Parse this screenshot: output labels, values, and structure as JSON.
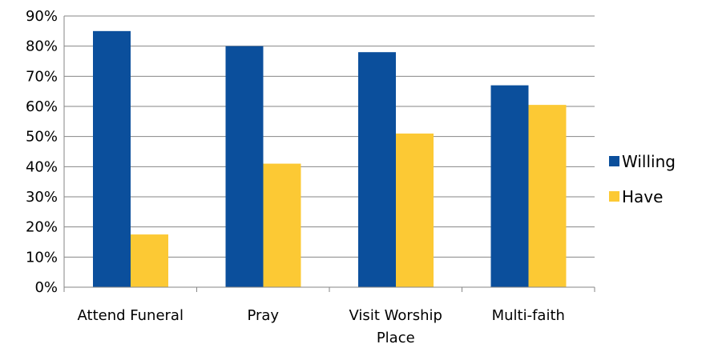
{
  "chart_data": {
    "type": "bar",
    "categories": [
      [
        "Attend Funeral"
      ],
      [
        "Pray"
      ],
      [
        "Visit Worship",
        "Place"
      ],
      [
        "Multi-faith"
      ]
    ],
    "series": [
      {
        "name": "Willing",
        "values": [
          0.85,
          0.8,
          0.78,
          0.67
        ],
        "color": "#0b4f9c"
      },
      {
        "name": "Have",
        "values": [
          0.175,
          0.41,
          0.51,
          0.605
        ],
        "color": "#fcc934"
      }
    ],
    "ylim": [
      0,
      0.9
    ],
    "yticks": [
      0,
      0.1,
      0.2,
      0.3,
      0.4,
      0.5,
      0.6,
      0.7,
      0.8,
      0.9
    ],
    "ytick_format": "percent",
    "grid": true,
    "legend_position": "right",
    "title": "",
    "xlabel": "",
    "ylabel": ""
  }
}
